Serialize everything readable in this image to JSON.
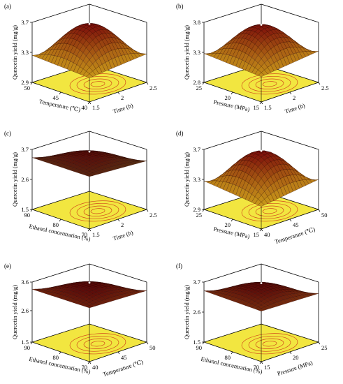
{
  "figure": {
    "panels": [
      "(a)",
      "(b)",
      "(c)",
      "(d)",
      "(e)",
      "(f)"
    ]
  },
  "chart_data": [
    {
      "panel": "(a)",
      "type": "surface",
      "zlabel": "Quercetin yield (mg/g)",
      "xlabel": "Time (h)",
      "ylabel": "Temperature (℃)",
      "z_ticks": [
        "3.7",
        "3.3",
        "2.9"
      ],
      "x_ticks": [
        "1.5",
        "2",
        "2.5"
      ],
      "y_ticks": [
        "40",
        "45",
        "50"
      ],
      "xlim": [
        1.5,
        2.5
      ],
      "ylim": [
        40,
        50
      ],
      "zlim": [
        2.9,
        3.7
      ],
      "corners": [
        3.22,
        3.28,
        3.26,
        3.08
      ],
      "peak": 3.68,
      "surface_colors": [
        "#7a0a0a",
        "#e8d020"
      ],
      "contour_color": "#e8d830"
    },
    {
      "panel": "(b)",
      "type": "surface",
      "zlabel": "Quercetin yield (mg/g)",
      "xlabel": "Time (h)",
      "ylabel": "Pressure (MPa)",
      "z_ticks": [
        "3.8",
        "3.3",
        "2.8"
      ],
      "x_ticks": [
        "1.5",
        "2",
        "2.5"
      ],
      "y_ticks": [
        "15",
        "20",
        "25"
      ],
      "xlim": [
        1.5,
        2.5
      ],
      "ylim": [
        15,
        25
      ],
      "zlim": [
        2.8,
        3.8
      ],
      "corners": [
        3.22,
        3.32,
        3.28,
        2.95
      ],
      "peak": 3.76,
      "surface_colors": [
        "#7a0a0a",
        "#e8d020"
      ],
      "contour_color": "#e8d830"
    },
    {
      "panel": "(c)",
      "type": "surface",
      "zlabel": "Quercetin yield (mg/g)",
      "xlabel": "Time (h)",
      "ylabel": "Ethanol concentration (%)",
      "z_ticks": [
        "3.7",
        "2.6",
        "1.5"
      ],
      "x_ticks": [
        "1.5",
        "2",
        "2.5"
      ],
      "y_ticks": [
        "70",
        "80",
        "90"
      ],
      "xlim": [
        1.5,
        2.5
      ],
      "ylim": [
        70,
        90
      ],
      "zlim": [
        1.5,
        3.7
      ],
      "corners": [
        3.42,
        3.28,
        3.4,
        2.75
      ],
      "peak": 3.62,
      "surface_colors": [
        "#5a0808",
        "#4caf30"
      ],
      "contour_color": "#e8d830"
    },
    {
      "panel": "(d)",
      "type": "surface",
      "zlabel": "Quercetin yield (mg/g)",
      "xlabel": "Temperature (℃)",
      "ylabel": "Pressure (MPa)",
      "z_ticks": [
        "3.7",
        "3.3",
        "2.9"
      ],
      "x_ticks": [
        "40",
        "45",
        "50"
      ],
      "y_ticks": [
        "15",
        "20",
        "25"
      ],
      "xlim": [
        40,
        50
      ],
      "ylim": [
        15,
        25
      ],
      "zlim": [
        2.9,
        3.7
      ],
      "corners": [
        3.2,
        3.3,
        3.28,
        2.95
      ],
      "peak": 3.68,
      "surface_colors": [
        "#7a0a0a",
        "#e8d020"
      ],
      "contour_color": "#e8d830"
    },
    {
      "panel": "(e)",
      "type": "surface",
      "zlabel": "Quercetin yield (mg/g)",
      "xlabel": "Temperature (℃)",
      "ylabel": "Ethanol concentration (%)",
      "z_ticks": [
        "3.6",
        "2.6",
        "1.5"
      ],
      "x_ticks": [
        "40",
        "45",
        "50"
      ],
      "y_ticks": [
        "70",
        "80",
        "90"
      ],
      "xlim": [
        40,
        50
      ],
      "ylim": [
        70,
        90
      ],
      "zlim": [
        1.5,
        3.6
      ],
      "corners": [
        3.38,
        3.3,
        3.35,
        2.75
      ],
      "peak": 3.58,
      "surface_colors": [
        "#5a0808",
        "#d8b020"
      ],
      "contour_color": "#e8d830"
    },
    {
      "panel": "(f)",
      "type": "surface",
      "zlabel": "Quercetin yield (mg/g)",
      "xlabel": "Pressure (MPa)",
      "ylabel": "Ethanol concentration (%)",
      "z_ticks": [
        "3.7",
        "2.6",
        "1.5"
      ],
      "x_ticks": [
        "15",
        "20",
        "25"
      ],
      "y_ticks": [
        "70",
        "80",
        "90"
      ],
      "xlim": [
        15,
        25
      ],
      "ylim": [
        70,
        90
      ],
      "zlim": [
        1.5,
        3.7
      ],
      "corners": [
        3.35,
        3.28,
        3.38,
        2.7
      ],
      "peak": 3.66,
      "surface_colors": [
        "#5a0808",
        "#d8b020"
      ],
      "contour_color": "#e8d830"
    }
  ]
}
